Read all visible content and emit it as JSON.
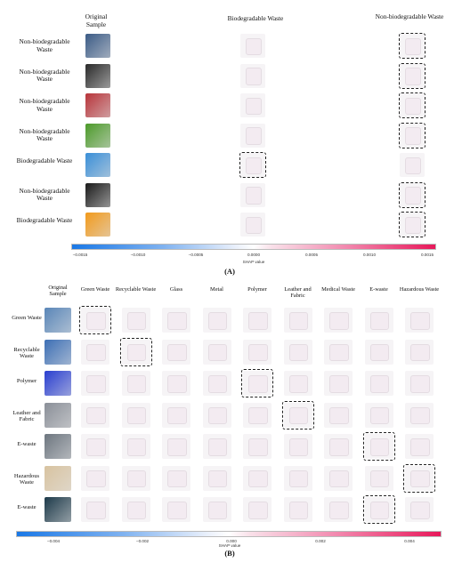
{
  "panel_a": {
    "headers": {
      "original": "Original Sample",
      "biodegradable": "Biodegradable Waste",
      "non_biodegradable": "Non-biodegradable Waste"
    },
    "rows": [
      {
        "label": "Non-biodegradable Waste",
        "thumb_color": "#3b5b86"
      },
      {
        "label": "Non-biodegradable Waste",
        "thumb_color": "#2a2a2a"
      },
      {
        "label": "Non-biodegradable Waste",
        "thumb_color": "#b8343a"
      },
      {
        "label": "Non-biodegradable Waste",
        "thumb_color": "#4c9a2a"
      },
      {
        "label": "Biodegradable Waste",
        "thumb_color": "#3a8fd8"
      },
      {
        "label": "Non-biodegradable Waste",
        "thumb_color": "#1a1a1a"
      },
      {
        "label": "Biodegradable Waste",
        "thumb_color": "#f29a1c"
      }
    ],
    "highlight": [
      "nb",
      "nb",
      "nb",
      "nb",
      "b",
      "nb",
      "nb"
    ],
    "colorbar": {
      "ticks": [
        "−0.0015",
        "−0.0010",
        "−0.0005",
        "0.0000",
        "0.0005",
        "0.0010",
        "0.0015"
      ],
      "label": "SHAP value"
    },
    "caption": "(A)"
  },
  "panel_b": {
    "original_header": "Original Sample",
    "columns": [
      "Green Waste",
      "Recyclable Waste",
      "Glass",
      "Metal",
      "Polymer",
      "Leather and Fabric",
      "Medical Waste",
      "E-waste",
      "Hazardous Waste"
    ],
    "rows": [
      {
        "label": "Green Waste",
        "thumb_color": "#5a86b8",
        "highlight": 0
      },
      {
        "label": "Recyclable Waste",
        "thumb_color": "#3d6fb5",
        "highlight": 1
      },
      {
        "label": "Polymer",
        "thumb_color": "#2a3fd0",
        "highlight": 4
      },
      {
        "label": "Leather and Fabric",
        "thumb_color": "#8a8f98",
        "highlight": 5
      },
      {
        "label": "E-waste",
        "thumb_color": "#6d7680",
        "highlight": 7
      },
      {
        "label": "Hazardous Waste",
        "thumb_color": "#d8c3a0",
        "highlight": 8
      },
      {
        "label": "E-waste",
        "thumb_color": "#1d3a4a",
        "highlight": 7
      }
    ],
    "colorbar": {
      "ticks": [
        "−0.004",
        "−0.002",
        "0.000",
        "0.002",
        "0.004"
      ],
      "label": "SHAP value"
    },
    "caption": "(B)"
  },
  "colors": {
    "negative": "#1a78e6",
    "positive": "#e8185a",
    "neutral": "#ffffff"
  }
}
